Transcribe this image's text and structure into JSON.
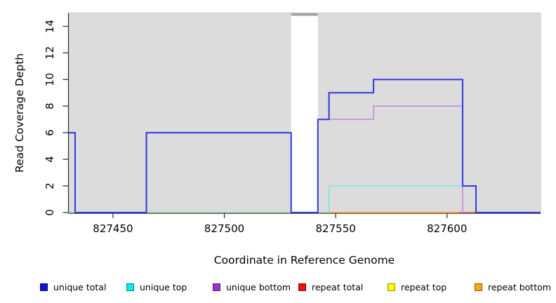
{
  "figure": {
    "background": "#ffffff"
  },
  "chart_data": {
    "type": "line",
    "subtype": "step-coverage-plot",
    "title": "",
    "xlabel": "Coordinate in Reference Genome",
    "ylabel": "Read Coverage Depth",
    "xlim": [
      827430,
      827642
    ],
    "ylim": [
      0,
      15
    ],
    "x_ticks": [
      827450,
      827500,
      827550,
      827600
    ],
    "y_ticks": [
      0,
      2,
      4,
      6,
      8,
      10,
      12,
      14
    ],
    "grid": false,
    "plot_background": "#ffffff",
    "background_regions": [
      {
        "name": "shaded-region-left",
        "x0": 827430,
        "x1": 827530,
        "color": "#dcdcdc"
      },
      {
        "name": "shaded-region-right",
        "x0": 827542,
        "x1": 827642,
        "color": "#dcdcdc"
      }
    ],
    "gap_region": {
      "name": "unshaded-gap",
      "x0": 827530,
      "x1": 827542,
      "top_marker_color": "#a2a2a2"
    },
    "border_color": "#c6c6c6",
    "axis_color": "#2a2a2a",
    "series": [
      {
        "name": "baseline-green",
        "color": "#9cd69c",
        "width": 1.3,
        "points": [
          [
            827430,
            0
          ],
          [
            827642,
            0
          ]
        ]
      },
      {
        "name": "repeat total",
        "color": "#e8555f",
        "width": 1.5,
        "points": [
          [
            827605,
            0
          ],
          [
            827613,
            0
          ]
        ]
      },
      {
        "name": "repeat bottom",
        "color": "#ff9d26",
        "width": 1.8,
        "points": [
          [
            827547,
            0
          ],
          [
            827605,
            0
          ]
        ]
      },
      {
        "name": "unique top",
        "color": "#76e4e4",
        "width": 1.4,
        "points": [
          [
            827547,
            0
          ],
          [
            827547,
            2
          ],
          [
            827613,
            2
          ],
          [
            827613,
            0
          ]
        ]
      },
      {
        "name": "unique bottom",
        "color": "#be7fde",
        "width": 1.4,
        "points": [
          [
            827542,
            0
          ],
          [
            827542,
            7
          ],
          [
            827567,
            7
          ],
          [
            827567,
            8
          ],
          [
            827607,
            8
          ],
          [
            827607,
            0
          ]
        ]
      },
      {
        "name": "unique total",
        "color": "#3535dd",
        "width": 2,
        "points": [
          [
            827430,
            6
          ],
          [
            827433,
            6
          ],
          [
            827433,
            0
          ],
          [
            827465,
            0
          ],
          [
            827465,
            6
          ],
          [
            827530,
            6
          ],
          [
            827530,
            0
          ],
          [
            827542,
            0
          ],
          [
            827542,
            7
          ],
          [
            827547,
            7
          ],
          [
            827547,
            9
          ],
          [
            827567,
            9
          ],
          [
            827567,
            10
          ],
          [
            827607,
            10
          ],
          [
            827607,
            2
          ],
          [
            827613,
            2
          ],
          [
            827613,
            0
          ],
          [
            827642,
            0
          ]
        ]
      }
    ]
  },
  "legend": {
    "items": [
      {
        "label": "unique total",
        "color": "#1212cf"
      },
      {
        "label": "unique top",
        "color": "#00eeee"
      },
      {
        "label": "unique bottom",
        "color": "#9933cc"
      },
      {
        "label": "repeat total",
        "color": "#ee1111"
      },
      {
        "label": "repeat top",
        "color": "#ffff00"
      },
      {
        "label": "repeat bottom",
        "color": "#ffa510"
      }
    ]
  }
}
